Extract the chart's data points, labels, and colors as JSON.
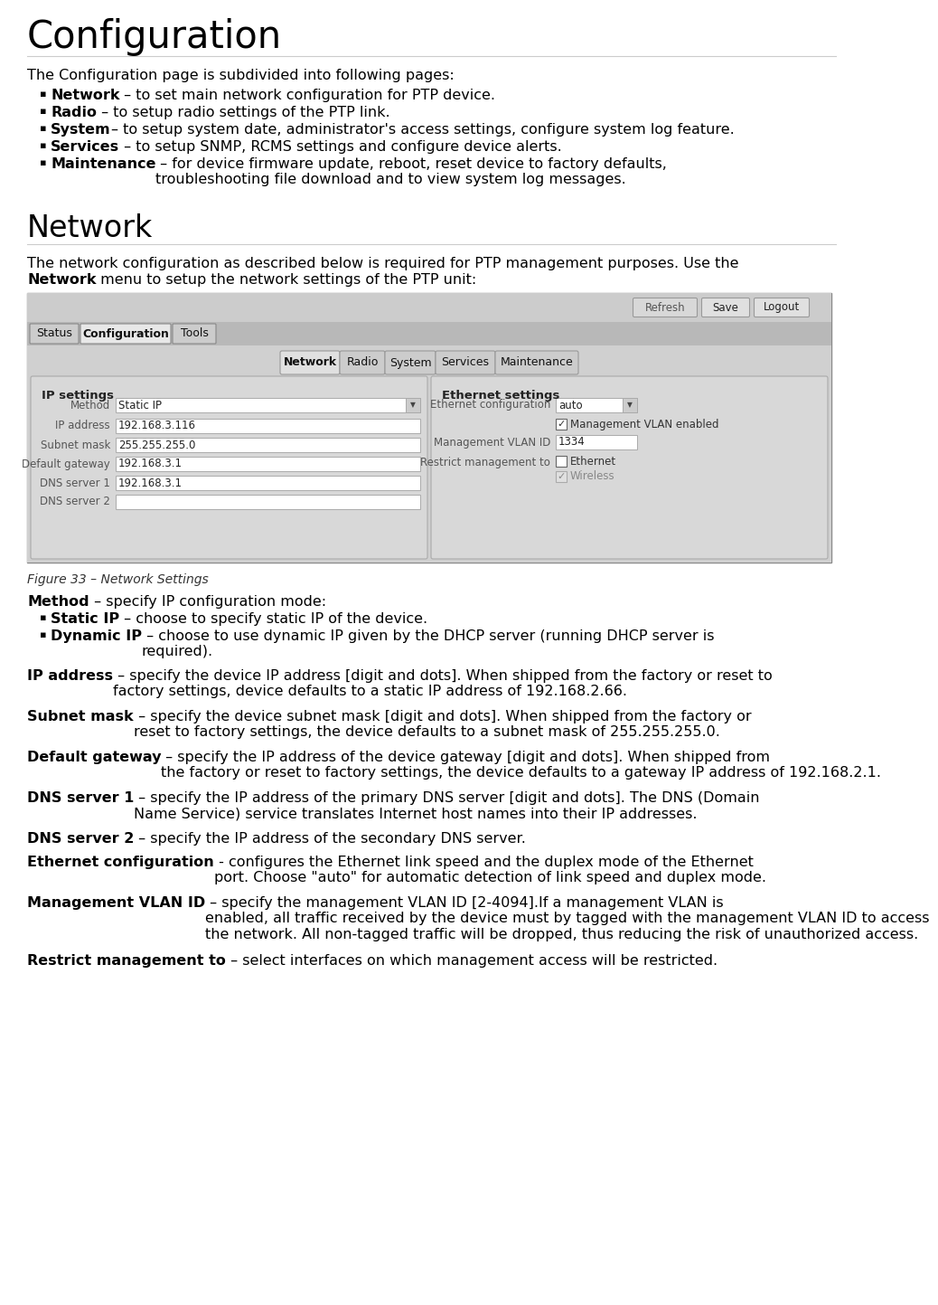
{
  "bg_color": "#ffffff",
  "title": "Configuration",
  "body_fontsize": 11.5,
  "bullet_items": [
    {
      "bold": "Network",
      "rest": " – to set main network configuration for PTP device."
    },
    {
      "bold": "Radio",
      "rest": " – to setup radio settings of the PTP link."
    },
    {
      "bold": "System",
      "rest": "– to setup system date, administrator's access settings, configure system log feature."
    },
    {
      "bold": "Services",
      "rest": " – to setup SNMP, RCMS settings and configure device alerts."
    },
    {
      "bold": "Maintenance",
      "rest": " – for device firmware update, reboot, reset device to factory defaults,\ntroubleshooting file download and to view system log messages."
    }
  ],
  "network_title": "Network",
  "figure_caption": "Figure 33 – Network Settings",
  "method_bullets": [
    {
      "bold": "Static IP",
      "rest": " – choose to specify static IP of the device."
    },
    {
      "bold": "Dynamic IP",
      "rest": " – choose to use dynamic IP given by the DHCP server (running DHCP server is\nrequired)."
    }
  ],
  "param_items": [
    {
      "bold": "IP address",
      "rest": " – specify the device IP address [digit and dots]. When shipped from the factory or reset to\nfactory settings, device defaults to a static IP address of 192.168.2.66."
    },
    {
      "bold": "Subnet mask",
      "rest": " – specify the device subnet mask [digit and dots]. When shipped from the factory or\nreset to factory settings, the device defaults to a subnet mask of 255.255.255.0."
    },
    {
      "bold": "Default gateway",
      "rest": " – specify the IP address of the device gateway [digit and dots]. When shipped from\nthe factory or reset to factory settings, the device defaults to a gateway IP address of 192.168.2.1."
    },
    {
      "bold": "DNS server 1",
      "rest": " – specify the IP address of the primary DNS server [digit and dots]. The DNS (Domain\nName Service) service translates Internet host names into their IP addresses."
    },
    {
      "bold": "DNS server 2",
      "rest": " – specify the IP address of the secondary DNS server."
    },
    {
      "bold": "Ethernet configuration",
      "rest": " - configures the Ethernet link speed and the duplex mode of the Ethernet\nport. Choose \"auto\" for automatic detection of link speed and duplex mode."
    },
    {
      "bold": "Management VLAN ID",
      "rest": " – specify the management VLAN ID [2-4094].If a management VLAN is\nenabled, all traffic received by the device must by tagged with the management VLAN ID to access\nthe network. All non-tagged traffic will be dropped, thus reducing the risk of unauthorized access."
    },
    {
      "bold": "Restrict management to",
      "rest": " – select interfaces on which management access will be restricted."
    }
  ]
}
